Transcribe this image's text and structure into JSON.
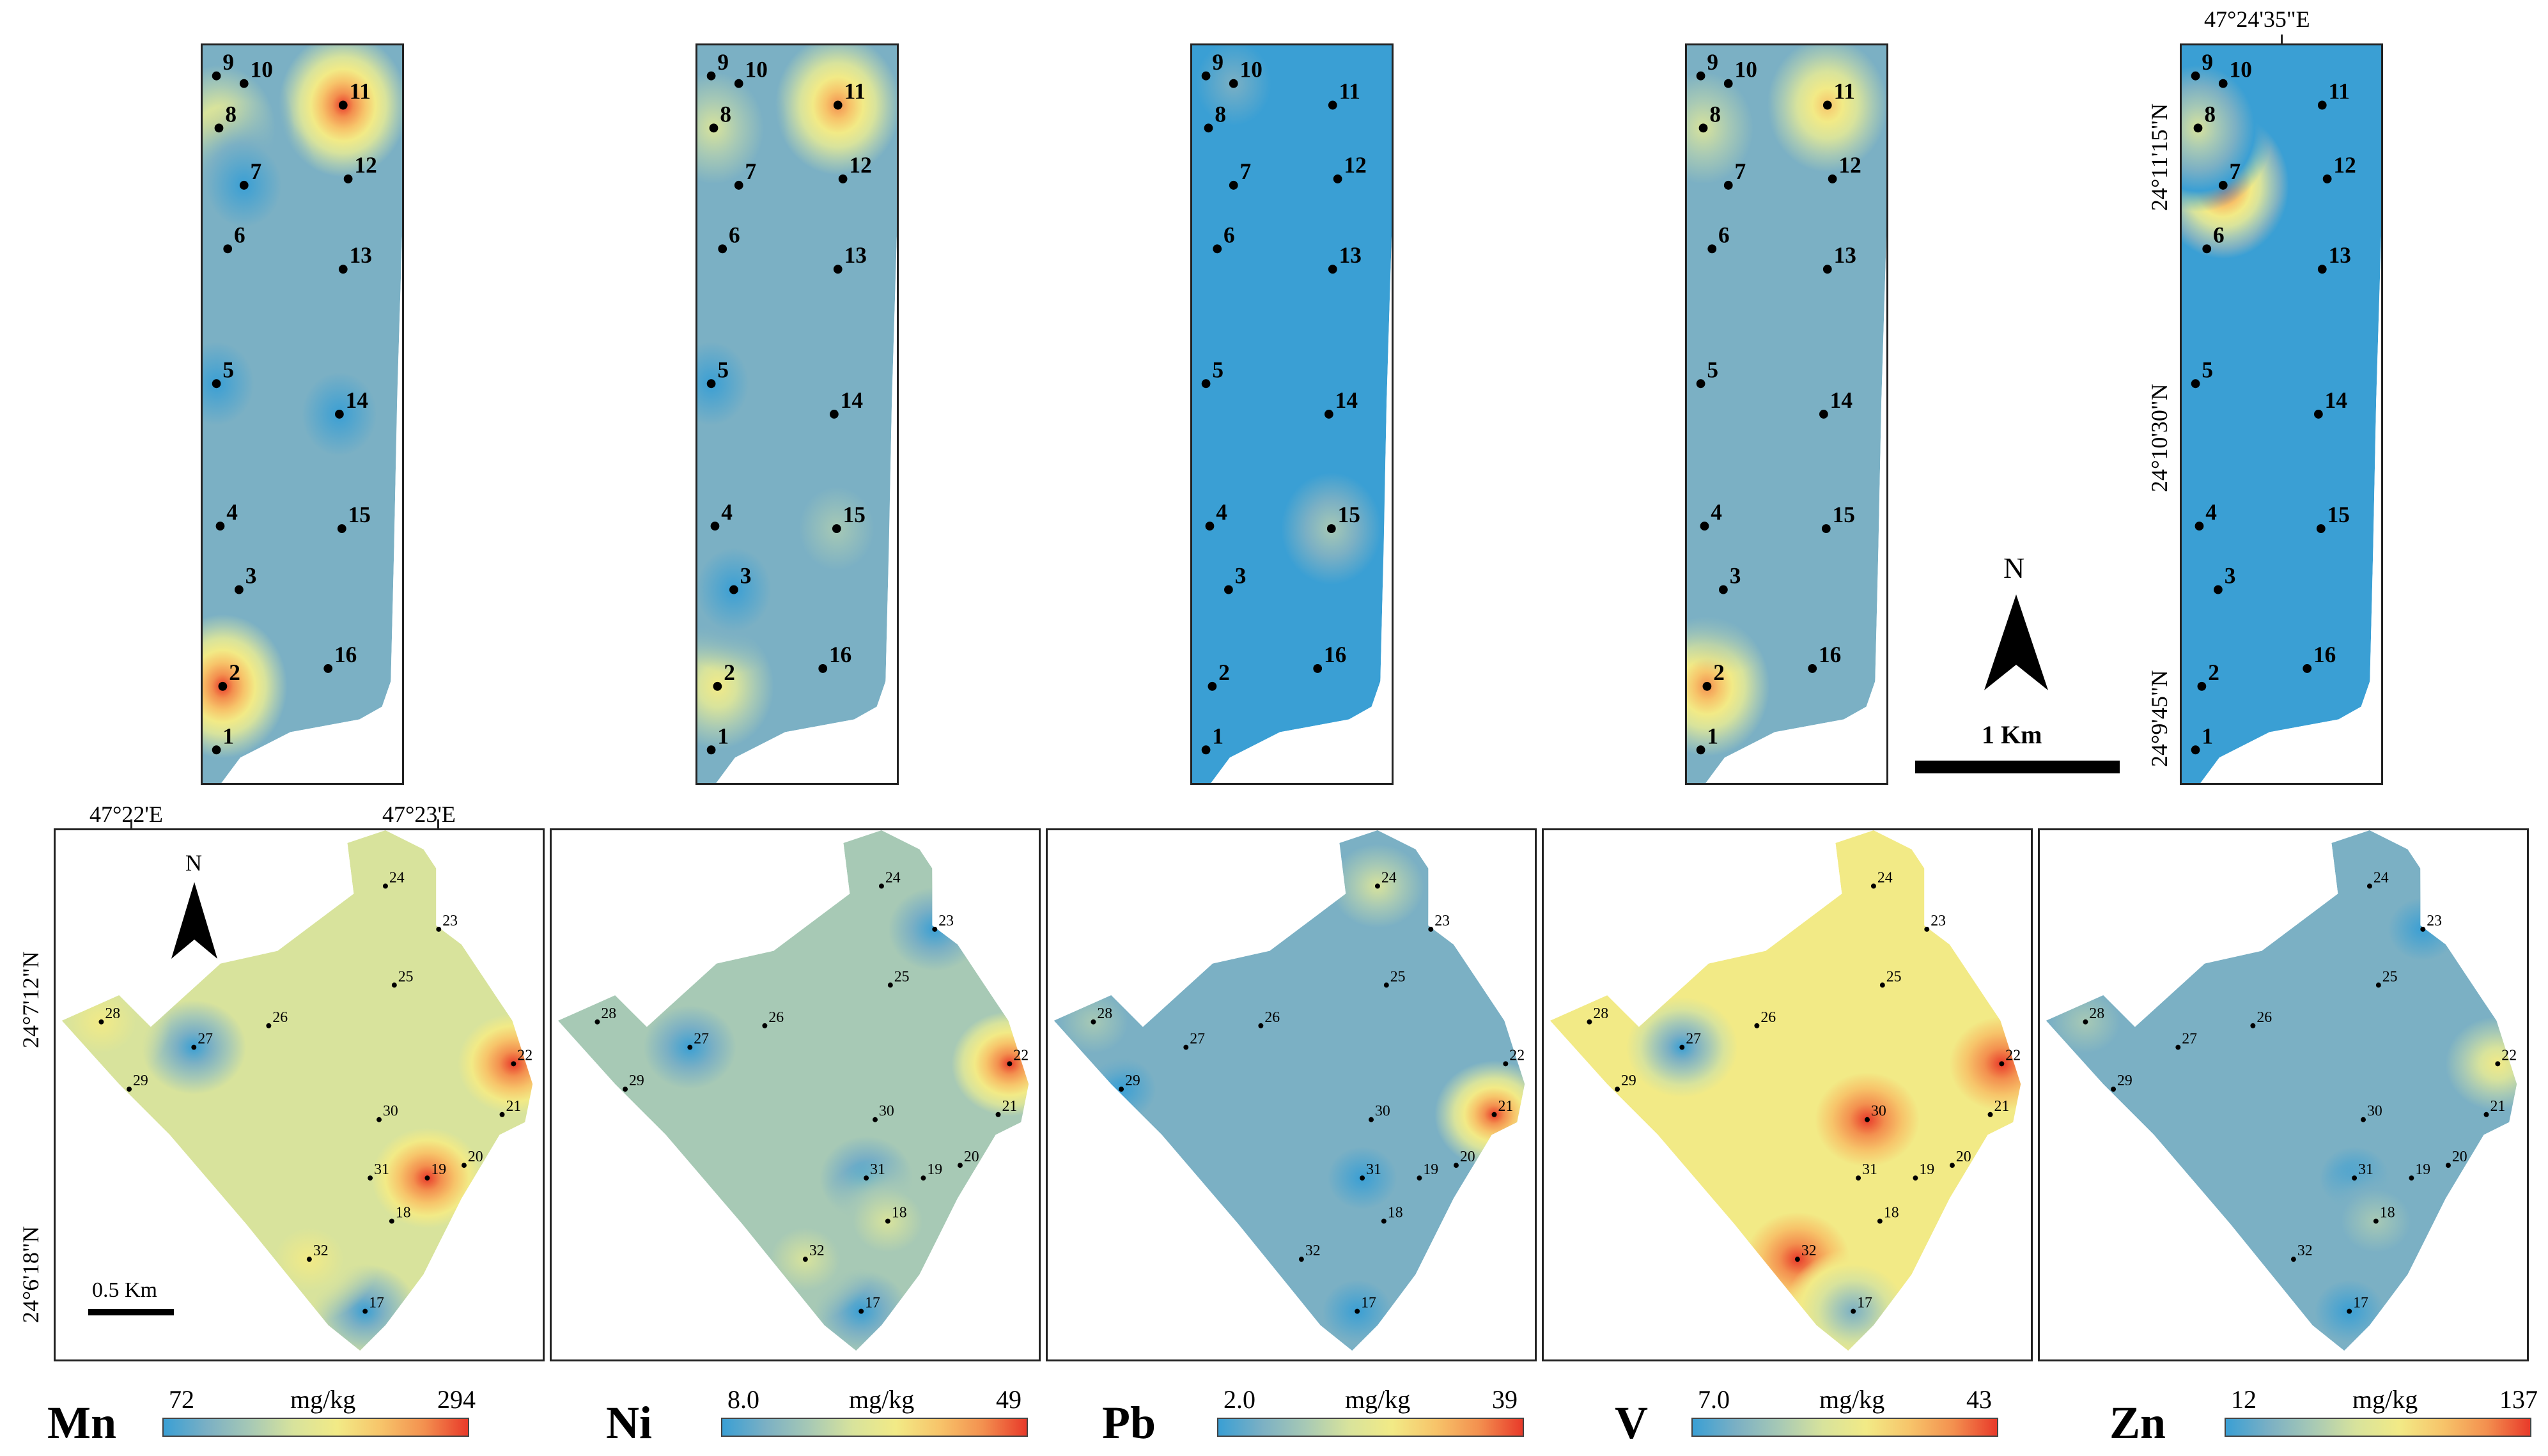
{
  "colors": {
    "ramp": [
      "#3a9fd4",
      "#7bb0c4",
      "#a7c9b5",
      "#d8e39c",
      "#f2ea86",
      "#f7c46a",
      "#f3904f",
      "#e83a2a"
    ],
    "frame": "#222222",
    "point": "#000000"
  },
  "top_row": {
    "panels": [
      {
        "element": "Mn",
        "background_level": 1,
        "points": [
          {
            "label": "1"
          },
          {
            "label": "2"
          },
          {
            "label": "3"
          },
          {
            "label": "4"
          },
          {
            "label": "5"
          },
          {
            "label": "6"
          },
          {
            "label": "7"
          },
          {
            "label": "8"
          },
          {
            "label": "9"
          },
          {
            "label": "10"
          },
          {
            "label": "11"
          },
          {
            "label": "12"
          },
          {
            "label": "13"
          },
          {
            "label": "14"
          },
          {
            "label": "15"
          },
          {
            "label": "16"
          }
        ],
        "hotspots": [
          {
            "point": "11",
            "level": 7
          },
          {
            "point": "2",
            "level": 7
          },
          {
            "point": "8",
            "level": 4
          },
          {
            "point": "5",
            "level": 0
          },
          {
            "point": "14",
            "level": 0
          },
          {
            "point": "7",
            "level": 0
          }
        ]
      },
      {
        "element": "Ni",
        "background_level": 1,
        "points": [
          {
            "label": "1"
          },
          {
            "label": "2"
          },
          {
            "label": "3"
          },
          {
            "label": "4"
          },
          {
            "label": "5"
          },
          {
            "label": "6"
          },
          {
            "label": "7"
          },
          {
            "label": "8"
          },
          {
            "label": "9"
          },
          {
            "label": "10"
          },
          {
            "label": "11"
          },
          {
            "label": "12"
          },
          {
            "label": "13"
          },
          {
            "label": "14"
          },
          {
            "label": "15"
          },
          {
            "label": "16"
          }
        ],
        "hotspots": [
          {
            "point": "11",
            "level": 6
          },
          {
            "point": "8",
            "level": 3
          },
          {
            "point": "2",
            "level": 4
          },
          {
            "point": "5",
            "level": 0
          },
          {
            "point": "3",
            "level": 0
          },
          {
            "point": "15",
            "level": 2
          }
        ]
      },
      {
        "element": "Pb",
        "background_level": 0,
        "points": [
          {
            "label": "1"
          },
          {
            "label": "2"
          },
          {
            "label": "3"
          },
          {
            "label": "4"
          },
          {
            "label": "5"
          },
          {
            "label": "6"
          },
          {
            "label": "7"
          },
          {
            "label": "8"
          },
          {
            "label": "9"
          },
          {
            "label": "10"
          },
          {
            "label": "11"
          },
          {
            "label": "12"
          },
          {
            "label": "13"
          },
          {
            "label": "14"
          },
          {
            "label": "15"
          },
          {
            "label": "16"
          }
        ],
        "hotspots": [
          {
            "point": "10",
            "level": 1
          },
          {
            "point": "15",
            "level": 2
          }
        ]
      },
      {
        "element": "V",
        "background_level": 1,
        "points": [
          {
            "label": "1"
          },
          {
            "label": "2"
          },
          {
            "label": "3"
          },
          {
            "label": "4"
          },
          {
            "label": "5"
          },
          {
            "label": "6"
          },
          {
            "label": "7"
          },
          {
            "label": "8"
          },
          {
            "label": "9"
          },
          {
            "label": "10"
          },
          {
            "label": "11"
          },
          {
            "label": "12"
          },
          {
            "label": "13"
          },
          {
            "label": "14"
          },
          {
            "label": "15"
          },
          {
            "label": "16"
          }
        ],
        "hotspots": [
          {
            "point": "11",
            "level": 5
          },
          {
            "point": "2",
            "level": 6
          },
          {
            "point": "8",
            "level": 3
          },
          {
            "point": "3",
            "level": 1
          }
        ]
      },
      {
        "element": "Zn",
        "background_level": 0,
        "points": [
          {
            "label": "1"
          },
          {
            "label": "2"
          },
          {
            "label": "3"
          },
          {
            "label": "4"
          },
          {
            "label": "5"
          },
          {
            "label": "6"
          },
          {
            "label": "7"
          },
          {
            "label": "8"
          },
          {
            "label": "9"
          },
          {
            "label": "10"
          },
          {
            "label": "11"
          },
          {
            "label": "12"
          },
          {
            "label": "13"
          },
          {
            "label": "14"
          },
          {
            "label": "15"
          },
          {
            "label": "16"
          }
        ],
        "hotspots": [
          {
            "point": "7",
            "level": 7
          },
          {
            "point": "8",
            "level": 3
          },
          {
            "point": "13",
            "level": 0
          }
        ]
      }
    ],
    "coords": {
      "lon": "47°24'35\"E",
      "lat1": "24°11'15\"N",
      "lat2": "24°10'30\"N",
      "lat3": "24°9'45\"N"
    }
  },
  "north_arrow_top": {
    "letter": "N"
  },
  "scale_bar_top": {
    "label": "1 Km"
  },
  "bottom_row": {
    "panels": [
      {
        "element": "Mn",
        "background_level": 3,
        "hotspots": [
          {
            "point": "22",
            "level": 7
          },
          {
            "point": "19",
            "level": 7
          },
          {
            "point": "27",
            "level": 0
          },
          {
            "point": "17",
            "level": 0
          },
          {
            "point": "28",
            "level": 4
          },
          {
            "point": "32",
            "level": 4
          }
        ]
      },
      {
        "element": "Ni",
        "background_level": 2,
        "hotspots": [
          {
            "point": "22",
            "level": 7
          },
          {
            "point": "27",
            "level": 0
          },
          {
            "point": "23",
            "level": 0
          },
          {
            "point": "31",
            "level": 0
          },
          {
            "point": "17",
            "level": 0
          },
          {
            "point": "32",
            "level": 3
          },
          {
            "point": "18",
            "level": 3
          }
        ]
      },
      {
        "element": "Pb",
        "background_level": 1,
        "hotspots": [
          {
            "point": "21",
            "level": 7
          },
          {
            "point": "29",
            "level": 0
          },
          {
            "point": "31",
            "level": 0
          },
          {
            "point": "17",
            "level": 0
          },
          {
            "point": "24",
            "level": 3
          },
          {
            "point": "28",
            "level": 2
          }
        ]
      },
      {
        "element": "V",
        "background_level": 4,
        "hotspots": [
          {
            "point": "22",
            "level": 7
          },
          {
            "point": "30",
            "level": 7
          },
          {
            "point": "32",
            "level": 7
          },
          {
            "point": "27",
            "level": 0
          },
          {
            "point": "17",
            "level": 1
          }
        ]
      },
      {
        "element": "Zn",
        "background_level": 1,
        "hotspots": [
          {
            "point": "22",
            "level": 4
          },
          {
            "point": "23",
            "level": 0
          },
          {
            "point": "31",
            "level": 0
          },
          {
            "point": "17",
            "level": 0
          },
          {
            "point": "28",
            "level": 2
          },
          {
            "point": "18",
            "level": 2
          }
        ]
      }
    ],
    "points": [
      {
        "label": "17"
      },
      {
        "label": "18"
      },
      {
        "label": "19"
      },
      {
        "label": "20"
      },
      {
        "label": "21"
      },
      {
        "label": "22"
      },
      {
        "label": "23"
      },
      {
        "label": "24"
      },
      {
        "label": "25"
      },
      {
        "label": "26"
      },
      {
        "label": "27"
      },
      {
        "label": "28"
      },
      {
        "label": "29"
      },
      {
        "label": "30"
      },
      {
        "label": "31"
      },
      {
        "label": "32"
      }
    ],
    "coords": {
      "lon1": "47°22'E",
      "lon2": "47°23'E",
      "lat1": "24°7'12\"N",
      "lat2": "24°6'18\"N"
    }
  },
  "north_arrow_bottom": {
    "letter": "N"
  },
  "scale_bar_bottom": {
    "label": "0.5 Km"
  },
  "legends": [
    {
      "element": "Mn",
      "min": "72",
      "max": "294",
      "unit": "mg/kg"
    },
    {
      "element": "Ni",
      "min": "8.0",
      "max": "49",
      "unit": "mg/kg"
    },
    {
      "element": "Pb",
      "min": "2.0",
      "max": "39",
      "unit": "mg/kg"
    },
    {
      "element": "V",
      "min": "7.0",
      "max": "43",
      "unit": "mg/kg"
    },
    {
      "element": "Zn",
      "min": "12",
      "max": "137",
      "unit": "mg/kg"
    }
  ]
}
